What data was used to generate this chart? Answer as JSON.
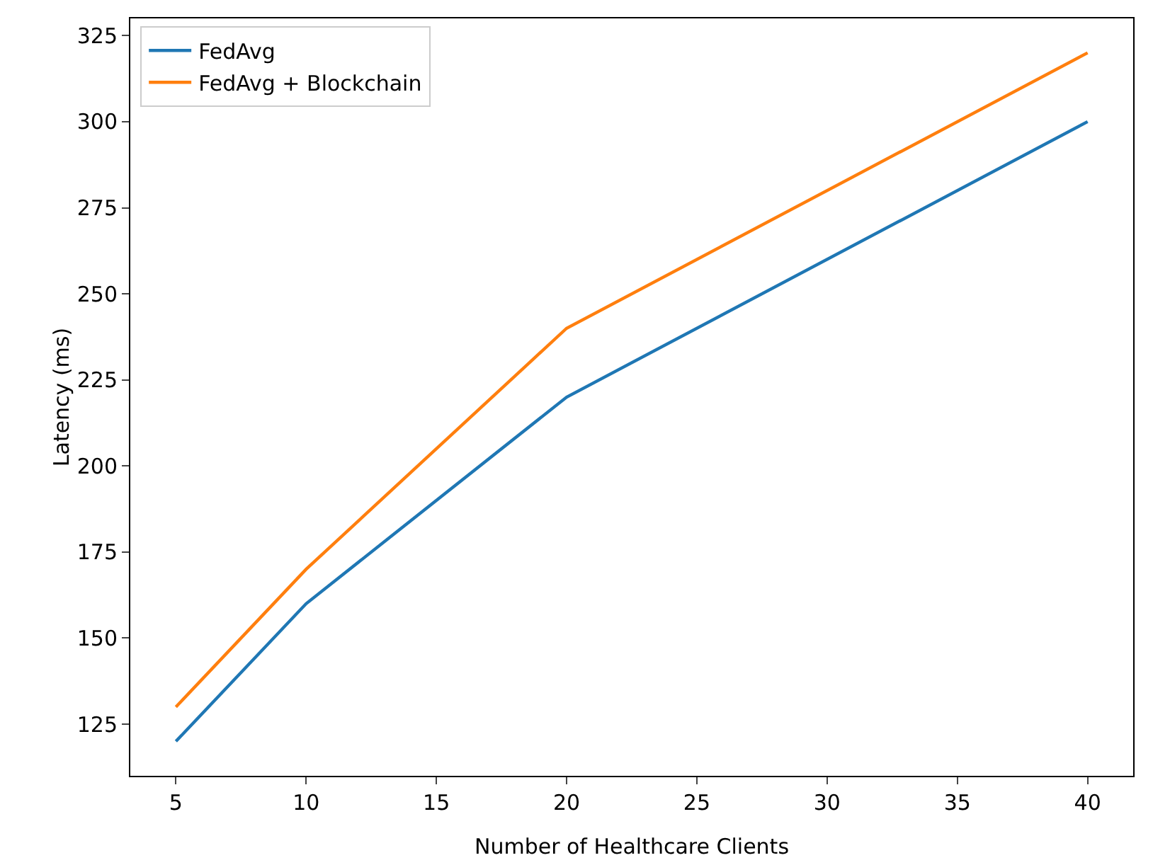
{
  "chart_data": {
    "type": "line",
    "xlabel": "Number of Healthcare Clients",
    "ylabel": "Latency (ms)",
    "x": [
      5,
      10,
      20,
      40
    ],
    "series": [
      {
        "name": "FedAvg",
        "color": "#1f77b4",
        "values": [
          120,
          160,
          220,
          300
        ]
      },
      {
        "name": "FedAvg + Blockchain",
        "color": "#ff7f0e",
        "values": [
          130,
          170,
          240,
          320
        ]
      }
    ],
    "xlim": [
      3.25,
      41.75
    ],
    "xticks": [
      5,
      10,
      15,
      20,
      25,
      30,
      35,
      40
    ],
    "ylim": [
      110,
      330
    ],
    "yticks": [
      125,
      150,
      175,
      200,
      225,
      250,
      275,
      300,
      325
    ],
    "grid": false,
    "legend": "top left",
    "marker": "none",
    "line_style": "solid"
  }
}
